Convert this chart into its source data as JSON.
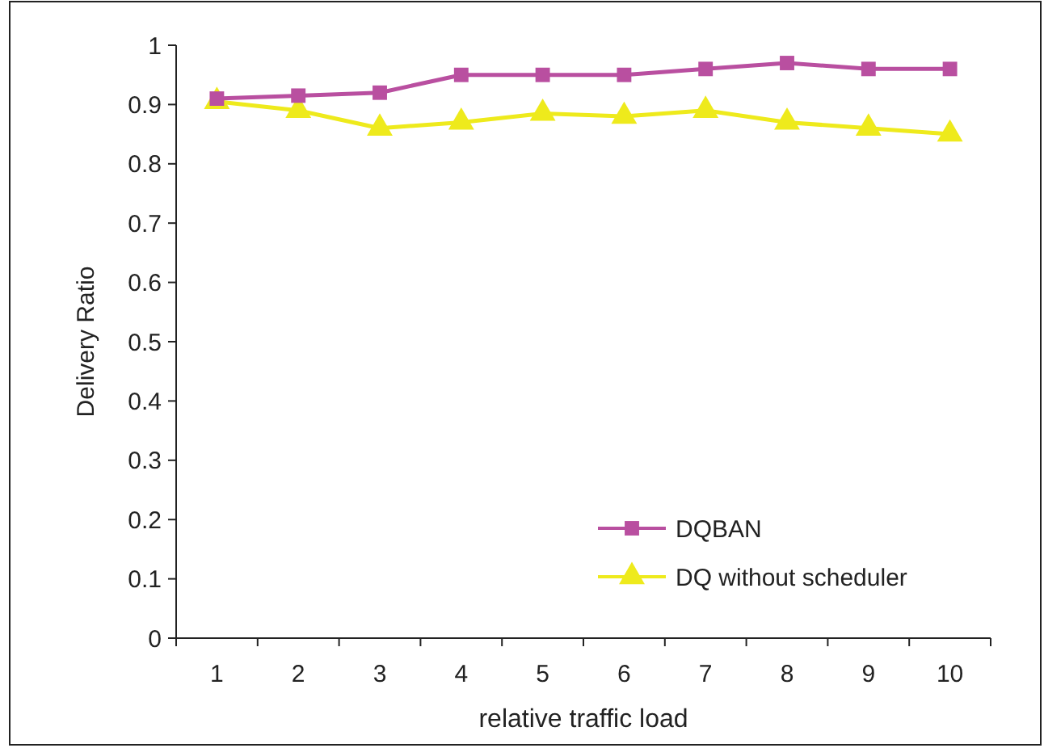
{
  "chart_data": {
    "type": "line",
    "xlabel": "relative traffic load",
    "ylabel": "Delivery Ratio",
    "categories": [
      "1",
      "2",
      "3",
      "4",
      "5",
      "6",
      "7",
      "8",
      "9",
      "10"
    ],
    "series": [
      {
        "name": "DQBAN",
        "color": "#b94fa0",
        "marker": "square",
        "values": [
          0.91,
          0.915,
          0.92,
          0.95,
          0.95,
          0.95,
          0.96,
          0.97,
          0.96,
          0.96
        ]
      },
      {
        "name": "DQ without scheduler",
        "color": "#eeea1c",
        "marker": "triangle",
        "values": [
          0.905,
          0.89,
          0.86,
          0.87,
          0.885,
          0.88,
          0.89,
          0.87,
          0.86,
          0.85
        ]
      }
    ],
    "ylim": [
      0,
      1
    ],
    "yticks": [
      0,
      0.1,
      0.2,
      0.3,
      0.4,
      0.5,
      0.6,
      0.7,
      0.8,
      0.9,
      1
    ],
    "grid": false,
    "legend": "bottom right",
    "line_style": "solid"
  }
}
